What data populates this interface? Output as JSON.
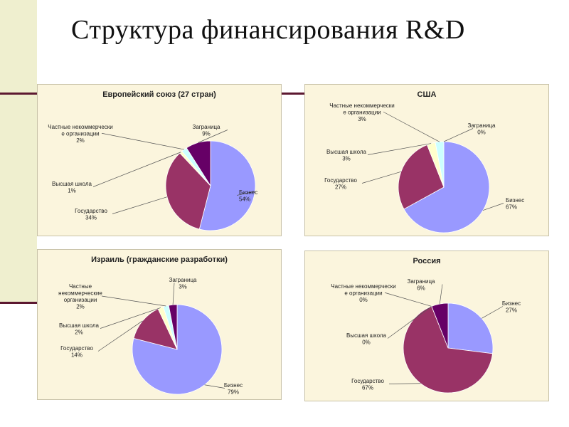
{
  "slide": {
    "title": "Структура финансирования R&D"
  },
  "colors": {
    "business": "#9999ff",
    "government": "#993366",
    "higher_education": "#ffffcc",
    "nonprofit": "#ccffff",
    "abroad": "#660066",
    "accent": "#5c1830",
    "panel_bg": "#fbf5dd"
  },
  "chart_data": [
    {
      "type": "pie",
      "title": "Европейский союз (27 стран)",
      "slices": [
        {
          "name": "Бизнес",
          "value": 54,
          "pct_label": "54%",
          "color": "#9999ff"
        },
        {
          "name": "Государство",
          "value": 34,
          "pct_label": "34%",
          "color": "#993366"
        },
        {
          "name": "Высшая школа",
          "value": 1,
          "pct_label": "1%",
          "color": "#ffffcc"
        },
        {
          "name": "Частные некоммерчески е организации",
          "value": 2,
          "pct_label": "2%",
          "color": "#ccffff"
        },
        {
          "name": "Заграница",
          "value": 9,
          "pct_label": "9%",
          "color": "#660066"
        }
      ]
    },
    {
      "type": "pie",
      "title": "США",
      "slices": [
        {
          "name": "Бизнес",
          "value": 67,
          "pct_label": "67%",
          "color": "#9999ff"
        },
        {
          "name": "Государство",
          "value": 27,
          "pct_label": "27%",
          "color": "#993366"
        },
        {
          "name": "Высшая школа",
          "value": 3,
          "pct_label": "3%",
          "color": "#ffffcc"
        },
        {
          "name": "Частные некоммерчески е организации",
          "value": 3,
          "pct_label": "3%",
          "color": "#ccffff"
        },
        {
          "name": "Заграница",
          "value": 0,
          "pct_label": "0%",
          "color": "#660066"
        }
      ]
    },
    {
      "type": "pie",
      "title": "Израиль (гражданские разработки)",
      "slices": [
        {
          "name": "Бизнес",
          "value": 79,
          "pct_label": "79%",
          "color": "#9999ff"
        },
        {
          "name": "Государство",
          "value": 14,
          "pct_label": "14%",
          "color": "#993366"
        },
        {
          "name": "Высшая школа",
          "value": 2,
          "pct_label": "2%",
          "color": "#ffffcc"
        },
        {
          "name": "Частные некоммерческие организации",
          "value": 2,
          "pct_label": "2%",
          "color": "#ccffff"
        },
        {
          "name": "Заграница",
          "value": 3,
          "pct_label": "3%",
          "color": "#660066"
        }
      ]
    },
    {
      "type": "pie",
      "title": "Россия",
      "slices": [
        {
          "name": "Бизнес",
          "value": 27,
          "pct_label": "27%",
          "color": "#9999ff"
        },
        {
          "name": "Государство",
          "value": 67,
          "pct_label": "67%",
          "color": "#993366"
        },
        {
          "name": "Высшая школа",
          "value": 0,
          "pct_label": "0%",
          "color": "#ffffcc"
        },
        {
          "name": "Частные некоммерчески е организации",
          "value": 0,
          "pct_label": "0%",
          "color": "#ccffff"
        },
        {
          "name": "Заграница",
          "value": 6,
          "pct_label": "6%",
          "color": "#660066"
        }
      ]
    }
  ]
}
